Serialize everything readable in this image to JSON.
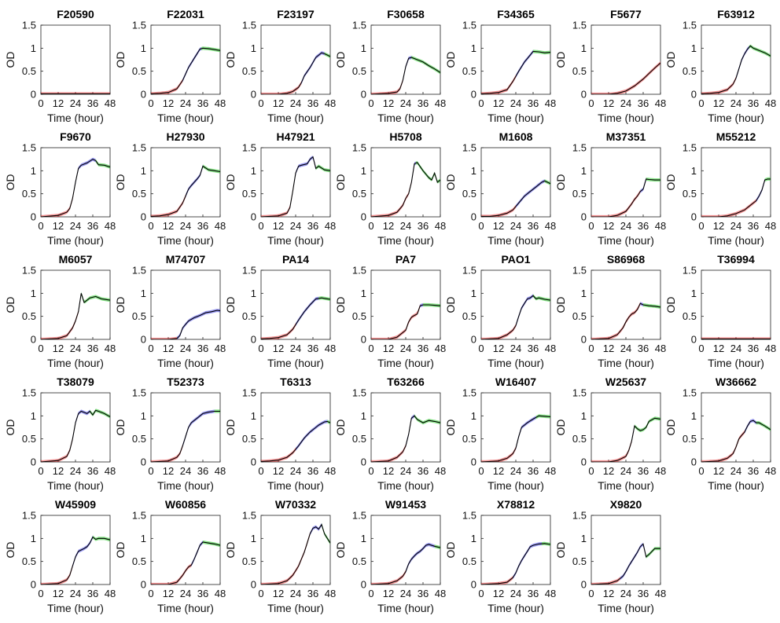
{
  "chart_data": {
    "type": "line",
    "layout": "small-multiples",
    "xlabel": "Time (hour)",
    "ylabel": "OD",
    "xlim": [
      0,
      48
    ],
    "ylim": [
      0,
      1.5
    ],
    "xticks": [
      0,
      12,
      24,
      36,
      48
    ],
    "yticks": [
      0,
      0.5,
      1,
      1.5
    ],
    "colors": {
      "phase1": "#e8393a",
      "phase2": "#4444e6",
      "phase3": "#22c922",
      "fit": "#000000"
    },
    "panels": [
      {
        "title": "F20590",
        "x": [
          0,
          48
        ],
        "y": [
          0.01,
          0.01
        ],
        "breaks": [
          48,
          48
        ]
      },
      {
        "title": "F22031",
        "x": [
          0,
          6,
          12,
          18,
          22,
          26,
          30,
          34,
          36,
          40,
          44,
          48
        ],
        "y": [
          0.01,
          0.02,
          0.04,
          0.12,
          0.3,
          0.58,
          0.78,
          0.98,
          1.0,
          0.99,
          0.97,
          0.95
        ],
        "breaks": [
          22,
          35
        ]
      },
      {
        "title": "F23197",
        "x": [
          0,
          12,
          18,
          22,
          26,
          28,
          30,
          34,
          38,
          42,
          44,
          48
        ],
        "y": [
          0.0,
          0.0,
          0.02,
          0.06,
          0.15,
          0.25,
          0.4,
          0.58,
          0.8,
          0.9,
          0.88,
          0.82
        ],
        "breaks": [
          28,
          44
        ]
      },
      {
        "title": "F30658",
        "x": [
          0,
          12,
          18,
          20,
          22,
          24,
          26,
          28,
          32,
          36,
          40,
          44,
          48
        ],
        "y": [
          0.0,
          0.02,
          0.05,
          0.12,
          0.3,
          0.6,
          0.78,
          0.8,
          0.75,
          0.7,
          0.62,
          0.55,
          0.47
        ],
        "breaks": [
          22,
          28
        ]
      },
      {
        "title": "F34365",
        "x": [
          0,
          6,
          12,
          18,
          22,
          26,
          30,
          34,
          36,
          40,
          44,
          48
        ],
        "y": [
          0.01,
          0.02,
          0.04,
          0.1,
          0.28,
          0.5,
          0.7,
          0.85,
          0.93,
          0.92,
          0.9,
          0.91
        ],
        "breaks": [
          24,
          36
        ]
      },
      {
        "title": "F5677",
        "x": [
          0,
          12,
          18,
          24,
          30,
          36,
          40,
          44,
          48
        ],
        "y": [
          0.0,
          0.0,
          0.02,
          0.07,
          0.18,
          0.33,
          0.45,
          0.57,
          0.68
        ],
        "breaks": [
          48,
          48
        ]
      },
      {
        "title": "F63912",
        "x": [
          0,
          6,
          12,
          18,
          22,
          24,
          26,
          28,
          30,
          32,
          34,
          36,
          40,
          44,
          48
        ],
        "y": [
          0.01,
          0.02,
          0.04,
          0.1,
          0.22,
          0.35,
          0.55,
          0.75,
          0.88,
          0.98,
          1.05,
          1.0,
          0.95,
          0.9,
          0.83
        ],
        "breaks": [
          24,
          33
        ]
      },
      {
        "title": "F9670",
        "x": [
          0,
          12,
          18,
          20,
          22,
          24,
          26,
          28,
          32,
          36,
          38,
          40,
          44,
          48
        ],
        "y": [
          0.0,
          0.03,
          0.1,
          0.18,
          0.4,
          0.75,
          1.05,
          1.12,
          1.17,
          1.25,
          1.22,
          1.13,
          1.12,
          1.08
        ],
        "breaks": [
          23,
          38
        ]
      },
      {
        "title": "H27930",
        "x": [
          0,
          6,
          12,
          18,
          22,
          24,
          26,
          28,
          32,
          34,
          36,
          40,
          44,
          48
        ],
        "y": [
          0.01,
          0.02,
          0.05,
          0.12,
          0.3,
          0.45,
          0.6,
          0.68,
          0.82,
          0.9,
          1.1,
          1.02,
          1.0,
          0.98
        ],
        "breaks": [
          24,
          36
        ]
      },
      {
        "title": "H47921",
        "x": [
          0,
          12,
          18,
          20,
          22,
          24,
          26,
          28,
          32,
          34,
          36,
          38,
          40,
          44,
          48
        ],
        "y": [
          0.0,
          0.02,
          0.08,
          0.2,
          0.55,
          0.95,
          1.1,
          1.12,
          1.15,
          1.25,
          1.3,
          1.05,
          1.1,
          1.02,
          1.0
        ],
        "breaks": [
          23,
          38
        ]
      },
      {
        "title": "H5708",
        "x": [
          0,
          12,
          18,
          22,
          24,
          26,
          28,
          30,
          32,
          36,
          40,
          42,
          44,
          46,
          48
        ],
        "y": [
          0.0,
          0.03,
          0.1,
          0.25,
          0.4,
          0.5,
          0.75,
          1.15,
          1.18,
          1.0,
          0.85,
          0.8,
          0.95,
          0.75,
          0.8
        ],
        "breaks": [
          28,
          31
        ]
      },
      {
        "title": "M1608",
        "x": [
          0,
          6,
          12,
          18,
          22,
          26,
          30,
          34,
          38,
          42,
          44,
          48
        ],
        "y": [
          0.01,
          0.01,
          0.03,
          0.08,
          0.15,
          0.3,
          0.45,
          0.55,
          0.65,
          0.75,
          0.78,
          0.72
        ],
        "breaks": [
          24,
          44
        ]
      },
      {
        "title": "M37351",
        "x": [
          0,
          12,
          18,
          24,
          28,
          30,
          32,
          34,
          36,
          38,
          40,
          44,
          48
        ],
        "y": [
          0.0,
          0.0,
          0.03,
          0.12,
          0.28,
          0.38,
          0.45,
          0.55,
          0.6,
          0.82,
          0.81,
          0.8,
          0.8
        ],
        "breaks": [
          34,
          38
        ]
      },
      {
        "title": "M55212",
        "x": [
          0,
          12,
          18,
          24,
          30,
          34,
          38,
          40,
          42,
          44,
          46,
          48
        ],
        "y": [
          0.0,
          0.0,
          0.02,
          0.07,
          0.15,
          0.25,
          0.35,
          0.45,
          0.58,
          0.8,
          0.82,
          0.82
        ],
        "breaks": [
          38,
          44
        ]
      },
      {
        "title": "M6057",
        "x": [
          0,
          12,
          18,
          22,
          24,
          26,
          28,
          30,
          34,
          38,
          42,
          48
        ],
        "y": [
          0.0,
          0.02,
          0.08,
          0.25,
          0.4,
          0.6,
          1.0,
          0.8,
          0.9,
          0.93,
          0.88,
          0.85
        ],
        "breaks": [
          26,
          28
        ]
      },
      {
        "title": "M74707",
        "x": [
          0,
          12,
          18,
          20,
          22,
          26,
          30,
          34,
          38,
          42,
          46,
          48
        ],
        "y": [
          0.0,
          0.0,
          0.02,
          0.08,
          0.25,
          0.4,
          0.47,
          0.52,
          0.58,
          0.6,
          0.63,
          0.62
        ],
        "breaks": [
          18,
          48
        ]
      },
      {
        "title": "PA14",
        "x": [
          0,
          6,
          12,
          18,
          22,
          26,
          30,
          34,
          38,
          42,
          46,
          48
        ],
        "y": [
          0.01,
          0.02,
          0.04,
          0.1,
          0.22,
          0.42,
          0.6,
          0.75,
          0.88,
          0.9,
          0.88,
          0.87
        ],
        "breaks": [
          24,
          40
        ]
      },
      {
        "title": "PA7",
        "x": [
          0,
          12,
          18,
          24,
          26,
          28,
          30,
          32,
          34,
          36,
          40,
          44,
          48
        ],
        "y": [
          0.0,
          0.0,
          0.05,
          0.2,
          0.38,
          0.48,
          0.52,
          0.55,
          0.73,
          0.75,
          0.75,
          0.74,
          0.73
        ],
        "breaks": [
          34,
          36
        ]
      },
      {
        "title": "PAO1",
        "x": [
          0,
          12,
          18,
          22,
          24,
          26,
          28,
          30,
          32,
          34,
          36,
          38,
          40,
          44,
          48
        ],
        "y": [
          0.0,
          0.02,
          0.1,
          0.2,
          0.3,
          0.5,
          0.68,
          0.78,
          0.88,
          0.9,
          0.95,
          0.88,
          0.9,
          0.87,
          0.85
        ],
        "breaks": [
          24,
          36
        ]
      },
      {
        "title": "S86968",
        "x": [
          0,
          12,
          18,
          22,
          24,
          26,
          28,
          30,
          32,
          34,
          36,
          40,
          44,
          48
        ],
        "y": [
          0.0,
          0.02,
          0.1,
          0.25,
          0.38,
          0.48,
          0.55,
          0.58,
          0.65,
          0.78,
          0.75,
          0.73,
          0.72,
          0.7
        ],
        "breaks": [
          34,
          36
        ]
      },
      {
        "title": "T36994",
        "x": [
          0,
          48
        ],
        "y": [
          0.01,
          0.01
        ],
        "breaks": [
          48,
          48
        ]
      },
      {
        "title": "T38079",
        "x": [
          0,
          12,
          18,
          20,
          22,
          24,
          26,
          28,
          32,
          34,
          36,
          38,
          40,
          44,
          48
        ],
        "y": [
          0.0,
          0.03,
          0.12,
          0.25,
          0.5,
          0.85,
          1.05,
          1.1,
          1.05,
          1.1,
          1.02,
          1.12,
          1.1,
          1.05,
          0.98
        ],
        "breaks": [
          22,
          34
        ]
      },
      {
        "title": "T52373",
        "x": [
          0,
          12,
          18,
          20,
          22,
          24,
          26,
          28,
          30,
          32,
          36,
          40,
          44,
          48
        ],
        "y": [
          0.0,
          0.02,
          0.1,
          0.18,
          0.35,
          0.55,
          0.75,
          0.85,
          0.9,
          0.95,
          1.05,
          1.08,
          1.1,
          1.1
        ],
        "breaks": [
          22,
          44
        ]
      },
      {
        "title": "T6313",
        "x": [
          0,
          6,
          12,
          18,
          22,
          26,
          30,
          34,
          38,
          40,
          44,
          46,
          48
        ],
        "y": [
          0.01,
          0.02,
          0.04,
          0.1,
          0.2,
          0.35,
          0.52,
          0.65,
          0.75,
          0.8,
          0.87,
          0.88,
          0.85
        ],
        "breaks": [
          24,
          46
        ]
      },
      {
        "title": "T63266",
        "x": [
          0,
          12,
          18,
          22,
          24,
          26,
          28,
          30,
          32,
          36,
          40,
          44,
          48
        ],
        "y": [
          0.0,
          0.02,
          0.1,
          0.22,
          0.35,
          0.6,
          0.95,
          1.0,
          0.92,
          0.85,
          0.9,
          0.88,
          0.85
        ],
        "breaks": [
          24,
          30
        ]
      },
      {
        "title": "W16407",
        "x": [
          0,
          12,
          18,
          22,
          24,
          26,
          28,
          30,
          32,
          36,
          40,
          44,
          48
        ],
        "y": [
          0.0,
          0.02,
          0.08,
          0.18,
          0.3,
          0.55,
          0.75,
          0.8,
          0.85,
          0.93,
          1.0,
          0.99,
          0.98
        ],
        "breaks": [
          24,
          38
        ]
      },
      {
        "title": "W25637",
        "x": [
          0,
          12,
          18,
          24,
          26,
          28,
          30,
          32,
          34,
          36,
          38,
          40,
          44,
          48
        ],
        "y": [
          0.0,
          0.0,
          0.03,
          0.12,
          0.25,
          0.45,
          0.78,
          0.72,
          0.68,
          0.7,
          0.75,
          0.88,
          0.95,
          0.93
        ],
        "breaks": [
          28,
          30
        ]
      },
      {
        "title": "W36662",
        "x": [
          0,
          12,
          18,
          22,
          24,
          26,
          28,
          30,
          32,
          34,
          36,
          38,
          40,
          44,
          48
        ],
        "y": [
          0.0,
          0.02,
          0.08,
          0.18,
          0.32,
          0.5,
          0.58,
          0.65,
          0.78,
          0.88,
          0.9,
          0.85,
          0.85,
          0.78,
          0.7
        ],
        "breaks": [
          30,
          38
        ]
      },
      {
        "title": "W45909",
        "x": [
          0,
          12,
          18,
          20,
          22,
          24,
          26,
          28,
          30,
          32,
          34,
          36,
          38,
          40,
          44,
          48
        ],
        "y": [
          0.0,
          0.02,
          0.1,
          0.2,
          0.4,
          0.6,
          0.72,
          0.75,
          0.78,
          0.82,
          0.9,
          1.03,
          0.98,
          1.0,
          1.0,
          0.97
        ],
        "breaks": [
          22,
          36
        ]
      },
      {
        "title": "W60856",
        "x": [
          0,
          12,
          18,
          22,
          24,
          26,
          28,
          30,
          32,
          34,
          36,
          40,
          44,
          48
        ],
        "y": [
          0.0,
          0.0,
          0.05,
          0.2,
          0.3,
          0.38,
          0.42,
          0.55,
          0.7,
          0.85,
          0.92,
          0.9,
          0.88,
          0.85
        ],
        "breaks": [
          28,
          36
        ]
      },
      {
        "title": "W70332",
        "x": [
          0,
          12,
          18,
          22,
          26,
          28,
          30,
          32,
          34,
          36,
          38,
          40,
          42,
          44,
          46,
          48
        ],
        "y": [
          0.0,
          0.02,
          0.08,
          0.2,
          0.4,
          0.55,
          0.7,
          0.9,
          1.1,
          1.22,
          1.25,
          1.2,
          1.3,
          1.1,
          1.0,
          0.9
        ],
        "breaks": [
          34,
          42
        ]
      },
      {
        "title": "W91453",
        "x": [
          0,
          12,
          18,
          22,
          24,
          26,
          28,
          30,
          32,
          34,
          36,
          38,
          40,
          44,
          48
        ],
        "y": [
          0.0,
          0.02,
          0.08,
          0.18,
          0.28,
          0.45,
          0.55,
          0.62,
          0.68,
          0.72,
          0.78,
          0.85,
          0.87,
          0.83,
          0.8
        ],
        "breaks": [
          24,
          44
        ]
      },
      {
        "title": "X78812",
        "x": [
          0,
          12,
          18,
          22,
          24,
          26,
          28,
          30,
          32,
          34,
          36,
          40,
          44,
          48
        ],
        "y": [
          0.0,
          0.02,
          0.05,
          0.15,
          0.25,
          0.4,
          0.52,
          0.62,
          0.72,
          0.82,
          0.85,
          0.88,
          0.89,
          0.87
        ],
        "breaks": [
          22,
          42
        ]
      },
      {
        "title": "X9820",
        "x": [
          0,
          12,
          18,
          22,
          24,
          26,
          28,
          30,
          32,
          34,
          36,
          38,
          40,
          44,
          48
        ],
        "y": [
          0.0,
          0.02,
          0.08,
          0.18,
          0.28,
          0.4,
          0.5,
          0.6,
          0.7,
          0.82,
          0.88,
          0.6,
          0.65,
          0.78,
          0.78
        ],
        "breaks": [
          20,
          38
        ]
      }
    ]
  }
}
